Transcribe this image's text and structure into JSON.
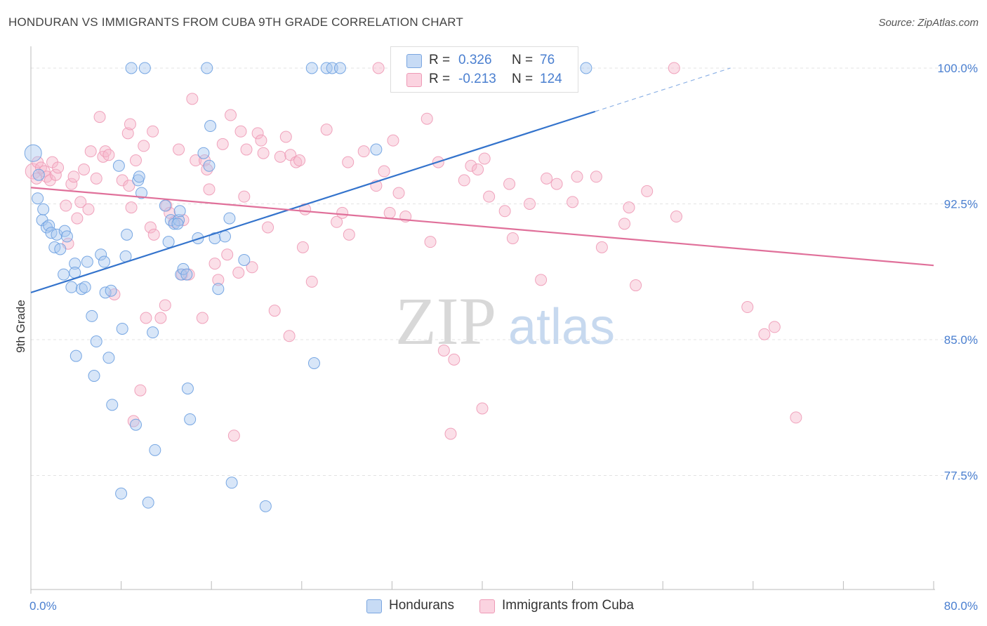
{
  "header": {
    "title": "HONDURAN VS IMMIGRANTS FROM CUBA 9TH GRADE CORRELATION CHART",
    "source": "Source: ZipAtlas.com"
  },
  "watermark": {
    "zip": "ZIP",
    "atlas": "atlas"
  },
  "legend_top": {
    "rows": [
      {
        "r_label": "R =",
        "r_value": "0.326",
        "n_label": "N =",
        "n_value": "76",
        "color": "#a9c8f0"
      },
      {
        "r_label": "R =",
        "r_value": "-0.213",
        "n_label": "N =",
        "n_value": "124",
        "color": "#f7b8cc"
      }
    ]
  },
  "legend_bottom": {
    "items": [
      {
        "label": "Hondurans",
        "color": "#a9c8f0"
      },
      {
        "label": "Immigrants from Cuba",
        "color": "#f7b8cc"
      }
    ]
  },
  "chart_data": {
    "type": "scatter",
    "title": "HONDURAN VS IMMIGRANTS FROM CUBA 9TH GRADE CORRELATION CHART",
    "xlabel": "",
    "ylabel": "9th Grade",
    "xlim": [
      0,
      80
    ],
    "ylim": [
      71.2,
      101.2
    ],
    "x_tick_labels": [
      "0.0%",
      "80.0%"
    ],
    "y_ticks": [
      77.5,
      85.0,
      92.5,
      100.0
    ],
    "y_tick_labels": [
      "77.5%",
      "85.0%",
      "92.5%",
      "100.0%"
    ],
    "grid": true,
    "legend_placement": "bottom",
    "colors": {
      "hondurans": "#6a9ee0",
      "hondurans_line": "#3373cc",
      "cuba": "#f2a0bb",
      "cuba_line": "#e0709a"
    },
    "series": [
      {
        "name": "Hondurans",
        "r": 0.326,
        "n": 76,
        "trend": {
          "x": [
            0,
            50
          ],
          "y": [
            87.6,
            97.6
          ],
          "dash_to": [
            62,
            100.0
          ]
        },
        "points": [
          [
            0.2,
            95.3
          ],
          [
            0.6,
            92.8
          ],
          [
            0.7,
            94.1
          ],
          [
            1.0,
            91.6
          ],
          [
            1.1,
            92.2
          ],
          [
            1.4,
            91.2
          ],
          [
            1.6,
            91.3
          ],
          [
            1.8,
            90.9
          ],
          [
            2.1,
            90.1
          ],
          [
            2.3,
            90.8
          ],
          [
            2.6,
            90.0
          ],
          [
            3.0,
            91.0
          ],
          [
            3.2,
            90.7
          ],
          [
            2.9,
            88.6
          ],
          [
            3.6,
            87.9
          ],
          [
            3.9,
            89.2
          ],
          [
            3.9,
            88.7
          ],
          [
            4.0,
            84.1
          ],
          [
            4.5,
            87.8
          ],
          [
            4.8,
            87.9
          ],
          [
            5.0,
            89.3
          ],
          [
            5.4,
            86.3
          ],
          [
            5.6,
            83.0
          ],
          [
            5.8,
            84.9
          ],
          [
            6.2,
            89.7
          ],
          [
            6.5,
            89.3
          ],
          [
            6.6,
            87.6
          ],
          [
            6.9,
            84.0
          ],
          [
            7.2,
            81.4
          ],
          [
            7.1,
            87.7
          ],
          [
            7.8,
            94.6
          ],
          [
            8.0,
            76.5
          ],
          [
            8.1,
            85.6
          ],
          [
            8.4,
            89.6
          ],
          [
            8.5,
            90.8
          ],
          [
            8.9,
            100.0
          ],
          [
            9.3,
            80.3
          ],
          [
            9.5,
            93.8
          ],
          [
            9.6,
            94.0
          ],
          [
            9.8,
            93.1
          ],
          [
            10.1,
            100.0
          ],
          [
            10.4,
            76.0
          ],
          [
            10.8,
            85.4
          ],
          [
            11.0,
            78.9
          ],
          [
            11.9,
            92.4
          ],
          [
            12.2,
            90.4
          ],
          [
            12.4,
            91.6
          ],
          [
            12.7,
            91.4
          ],
          [
            13.1,
            91.6
          ],
          [
            13.0,
            91.4
          ],
          [
            13.2,
            92.1
          ],
          [
            13.3,
            88.6
          ],
          [
            13.5,
            88.9
          ],
          [
            13.8,
            88.6
          ],
          [
            13.9,
            82.3
          ],
          [
            14.1,
            80.6
          ],
          [
            14.8,
            90.6
          ],
          [
            15.3,
            95.3
          ],
          [
            15.6,
            100.0
          ],
          [
            15.8,
            94.6
          ],
          [
            15.9,
            96.8
          ],
          [
            16.3,
            90.6
          ],
          [
            16.6,
            87.8
          ],
          [
            17.2,
            90.7
          ],
          [
            17.6,
            91.7
          ],
          [
            17.8,
            77.1
          ],
          [
            18.9,
            89.4
          ],
          [
            20.8,
            75.8
          ],
          [
            24.9,
            100.0
          ],
          [
            25.1,
            83.7
          ],
          [
            26.2,
            100.0
          ],
          [
            26.7,
            100.0
          ],
          [
            27.4,
            100.0
          ],
          [
            30.6,
            95.5
          ],
          [
            41.9,
            100.0
          ],
          [
            49.2,
            100.0
          ]
        ]
      },
      {
        "name": "Immigrants from Cuba",
        "r": -0.213,
        "n": 124,
        "trend": {
          "x": [
            0,
            80
          ],
          "y": [
            93.4,
            89.1
          ]
        },
        "points": [
          [
            0.2,
            94.3
          ],
          [
            0.5,
            93.9
          ],
          [
            0.6,
            94.8
          ],
          [
            0.9,
            94.5
          ],
          [
            1.2,
            94.3
          ],
          [
            1.4,
            94.0
          ],
          [
            1.7,
            93.8
          ],
          [
            1.9,
            94.8
          ],
          [
            2.2,
            94.1
          ],
          [
            2.4,
            94.5
          ],
          [
            3.1,
            92.4
          ],
          [
            3.3,
            90.3
          ],
          [
            3.6,
            93.6
          ],
          [
            3.8,
            94.0
          ],
          [
            4.1,
            91.7
          ],
          [
            4.4,
            92.6
          ],
          [
            4.7,
            94.4
          ],
          [
            5.1,
            92.2
          ],
          [
            5.3,
            95.4
          ],
          [
            5.8,
            93.9
          ],
          [
            6.1,
            97.3
          ],
          [
            6.4,
            95.1
          ],
          [
            6.6,
            95.4
          ],
          [
            6.9,
            95.2
          ],
          [
            7.4,
            87.5
          ],
          [
            8.1,
            93.8
          ],
          [
            8.6,
            96.4
          ],
          [
            8.7,
            93.5
          ],
          [
            8.8,
            96.9
          ],
          [
            8.9,
            92.3
          ],
          [
            9.1,
            80.5
          ],
          [
            9.3,
            94.9
          ],
          [
            9.7,
            82.2
          ],
          [
            10.0,
            95.7
          ],
          [
            10.2,
            86.2
          ],
          [
            10.6,
            91.2
          ],
          [
            10.8,
            96.5
          ],
          [
            10.9,
            90.8
          ],
          [
            11.5,
            86.2
          ],
          [
            11.9,
            86.9
          ],
          [
            12.0,
            92.4
          ],
          [
            12.3,
            92.0
          ],
          [
            12.7,
            91.5
          ],
          [
            13.1,
            95.5
          ],
          [
            13.4,
            88.6
          ],
          [
            13.5,
            91.6
          ],
          [
            14.0,
            88.6
          ],
          [
            14.3,
            98.3
          ],
          [
            14.6,
            94.9
          ],
          [
            15.2,
            86.2
          ],
          [
            15.4,
            94.9
          ],
          [
            15.6,
            94.4
          ],
          [
            15.8,
            93.3
          ],
          [
            16.3,
            89.2
          ],
          [
            16.6,
            88.3
          ],
          [
            17.0,
            95.8
          ],
          [
            17.4,
            89.7
          ],
          [
            17.7,
            97.4
          ],
          [
            18.0,
            79.7
          ],
          [
            18.4,
            88.7
          ],
          [
            18.6,
            96.5
          ],
          [
            18.9,
            92.9
          ],
          [
            19.1,
            95.5
          ],
          [
            19.6,
            89.0
          ],
          [
            20.1,
            96.4
          ],
          [
            20.4,
            96.0
          ],
          [
            20.6,
            95.3
          ],
          [
            21.0,
            91.2
          ],
          [
            21.6,
            86.6
          ],
          [
            22.1,
            95.1
          ],
          [
            22.6,
            96.2
          ],
          [
            22.9,
            85.2
          ],
          [
            23.0,
            95.2
          ],
          [
            23.5,
            94.8
          ],
          [
            23.8,
            94.9
          ],
          [
            24.1,
            90.1
          ],
          [
            24.3,
            92.2
          ],
          [
            24.9,
            88.2
          ],
          [
            26.2,
            96.6
          ],
          [
            27.1,
            91.5
          ],
          [
            27.6,
            92.0
          ],
          [
            28.1,
            94.8
          ],
          [
            28.2,
            90.8
          ],
          [
            29.5,
            95.4
          ],
          [
            30.6,
            93.5
          ],
          [
            30.8,
            100.0
          ],
          [
            31.3,
            94.3
          ],
          [
            31.8,
            92.0
          ],
          [
            32.1,
            96.0
          ],
          [
            32.6,
            93.1
          ],
          [
            33.2,
            91.8
          ],
          [
            35.1,
            97.2
          ],
          [
            35.4,
            90.4
          ],
          [
            36.1,
            94.8
          ],
          [
            36.6,
            84.4
          ],
          [
            37.2,
            79.8
          ],
          [
            37.5,
            83.9
          ],
          [
            38.4,
            93.8
          ],
          [
            39.0,
            94.6
          ],
          [
            39.6,
            94.4
          ],
          [
            40.0,
            81.2
          ],
          [
            40.2,
            95.0
          ],
          [
            40.6,
            92.9
          ],
          [
            42.0,
            92.1
          ],
          [
            42.4,
            93.6
          ],
          [
            42.7,
            90.6
          ],
          [
            44.2,
            92.5
          ],
          [
            45.2,
            88.3
          ],
          [
            45.7,
            93.9
          ],
          [
            46.6,
            93.6
          ],
          [
            48.0,
            92.6
          ],
          [
            48.4,
            94.0
          ],
          [
            50.1,
            94.0
          ],
          [
            50.6,
            90.1
          ],
          [
            52.6,
            91.4
          ],
          [
            53.0,
            92.3
          ],
          [
            53.6,
            88.0
          ],
          [
            54.6,
            93.2
          ],
          [
            57.2,
            91.8
          ],
          [
            57.0,
            100.0
          ],
          [
            63.5,
            86.8
          ],
          [
            65.0,
            85.3
          ],
          [
            65.9,
            85.7
          ],
          [
            67.8,
            80.7
          ]
        ]
      }
    ]
  }
}
